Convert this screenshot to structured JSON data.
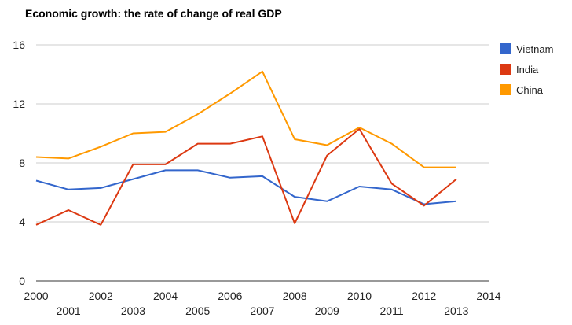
{
  "chart_data": {
    "type": "line",
    "title": "Economic growth: the rate of change of real GDP",
    "xlabel": "",
    "ylabel": "",
    "x": [
      2000,
      2001,
      2002,
      2003,
      2004,
      2005,
      2006,
      2007,
      2008,
      2009,
      2010,
      2011,
      2012,
      2013
    ],
    "xlim": [
      2000,
      2014
    ],
    "ylim": [
      0,
      16
    ],
    "x_ticks": [
      "2000",
      "2001",
      "2002",
      "2003",
      "2004",
      "2005",
      "2006",
      "2007",
      "2008",
      "2009",
      "2010",
      "2011",
      "2012",
      "2013",
      "2014"
    ],
    "y_ticks": [
      "0",
      "4",
      "8",
      "12",
      "16"
    ],
    "grid": true,
    "legend_position": "right",
    "series": [
      {
        "name": "Vietnam",
        "color": "#3366cc",
        "values": [
          6.8,
          6.2,
          6.3,
          6.9,
          7.5,
          7.5,
          7.0,
          7.1,
          5.7,
          5.4,
          6.4,
          6.2,
          5.2,
          5.4
        ]
      },
      {
        "name": "India",
        "color": "#dc3912",
        "values": [
          3.8,
          4.8,
          3.8,
          7.9,
          7.9,
          9.3,
          9.3,
          9.8,
          3.9,
          8.5,
          10.3,
          6.6,
          5.1,
          6.9
        ]
      },
      {
        "name": "China",
        "color": "#ff9900",
        "values": [
          8.4,
          8.3,
          9.1,
          10.0,
          10.1,
          11.3,
          12.7,
          14.2,
          9.6,
          9.2,
          10.4,
          9.3,
          7.7,
          7.7
        ]
      }
    ]
  }
}
